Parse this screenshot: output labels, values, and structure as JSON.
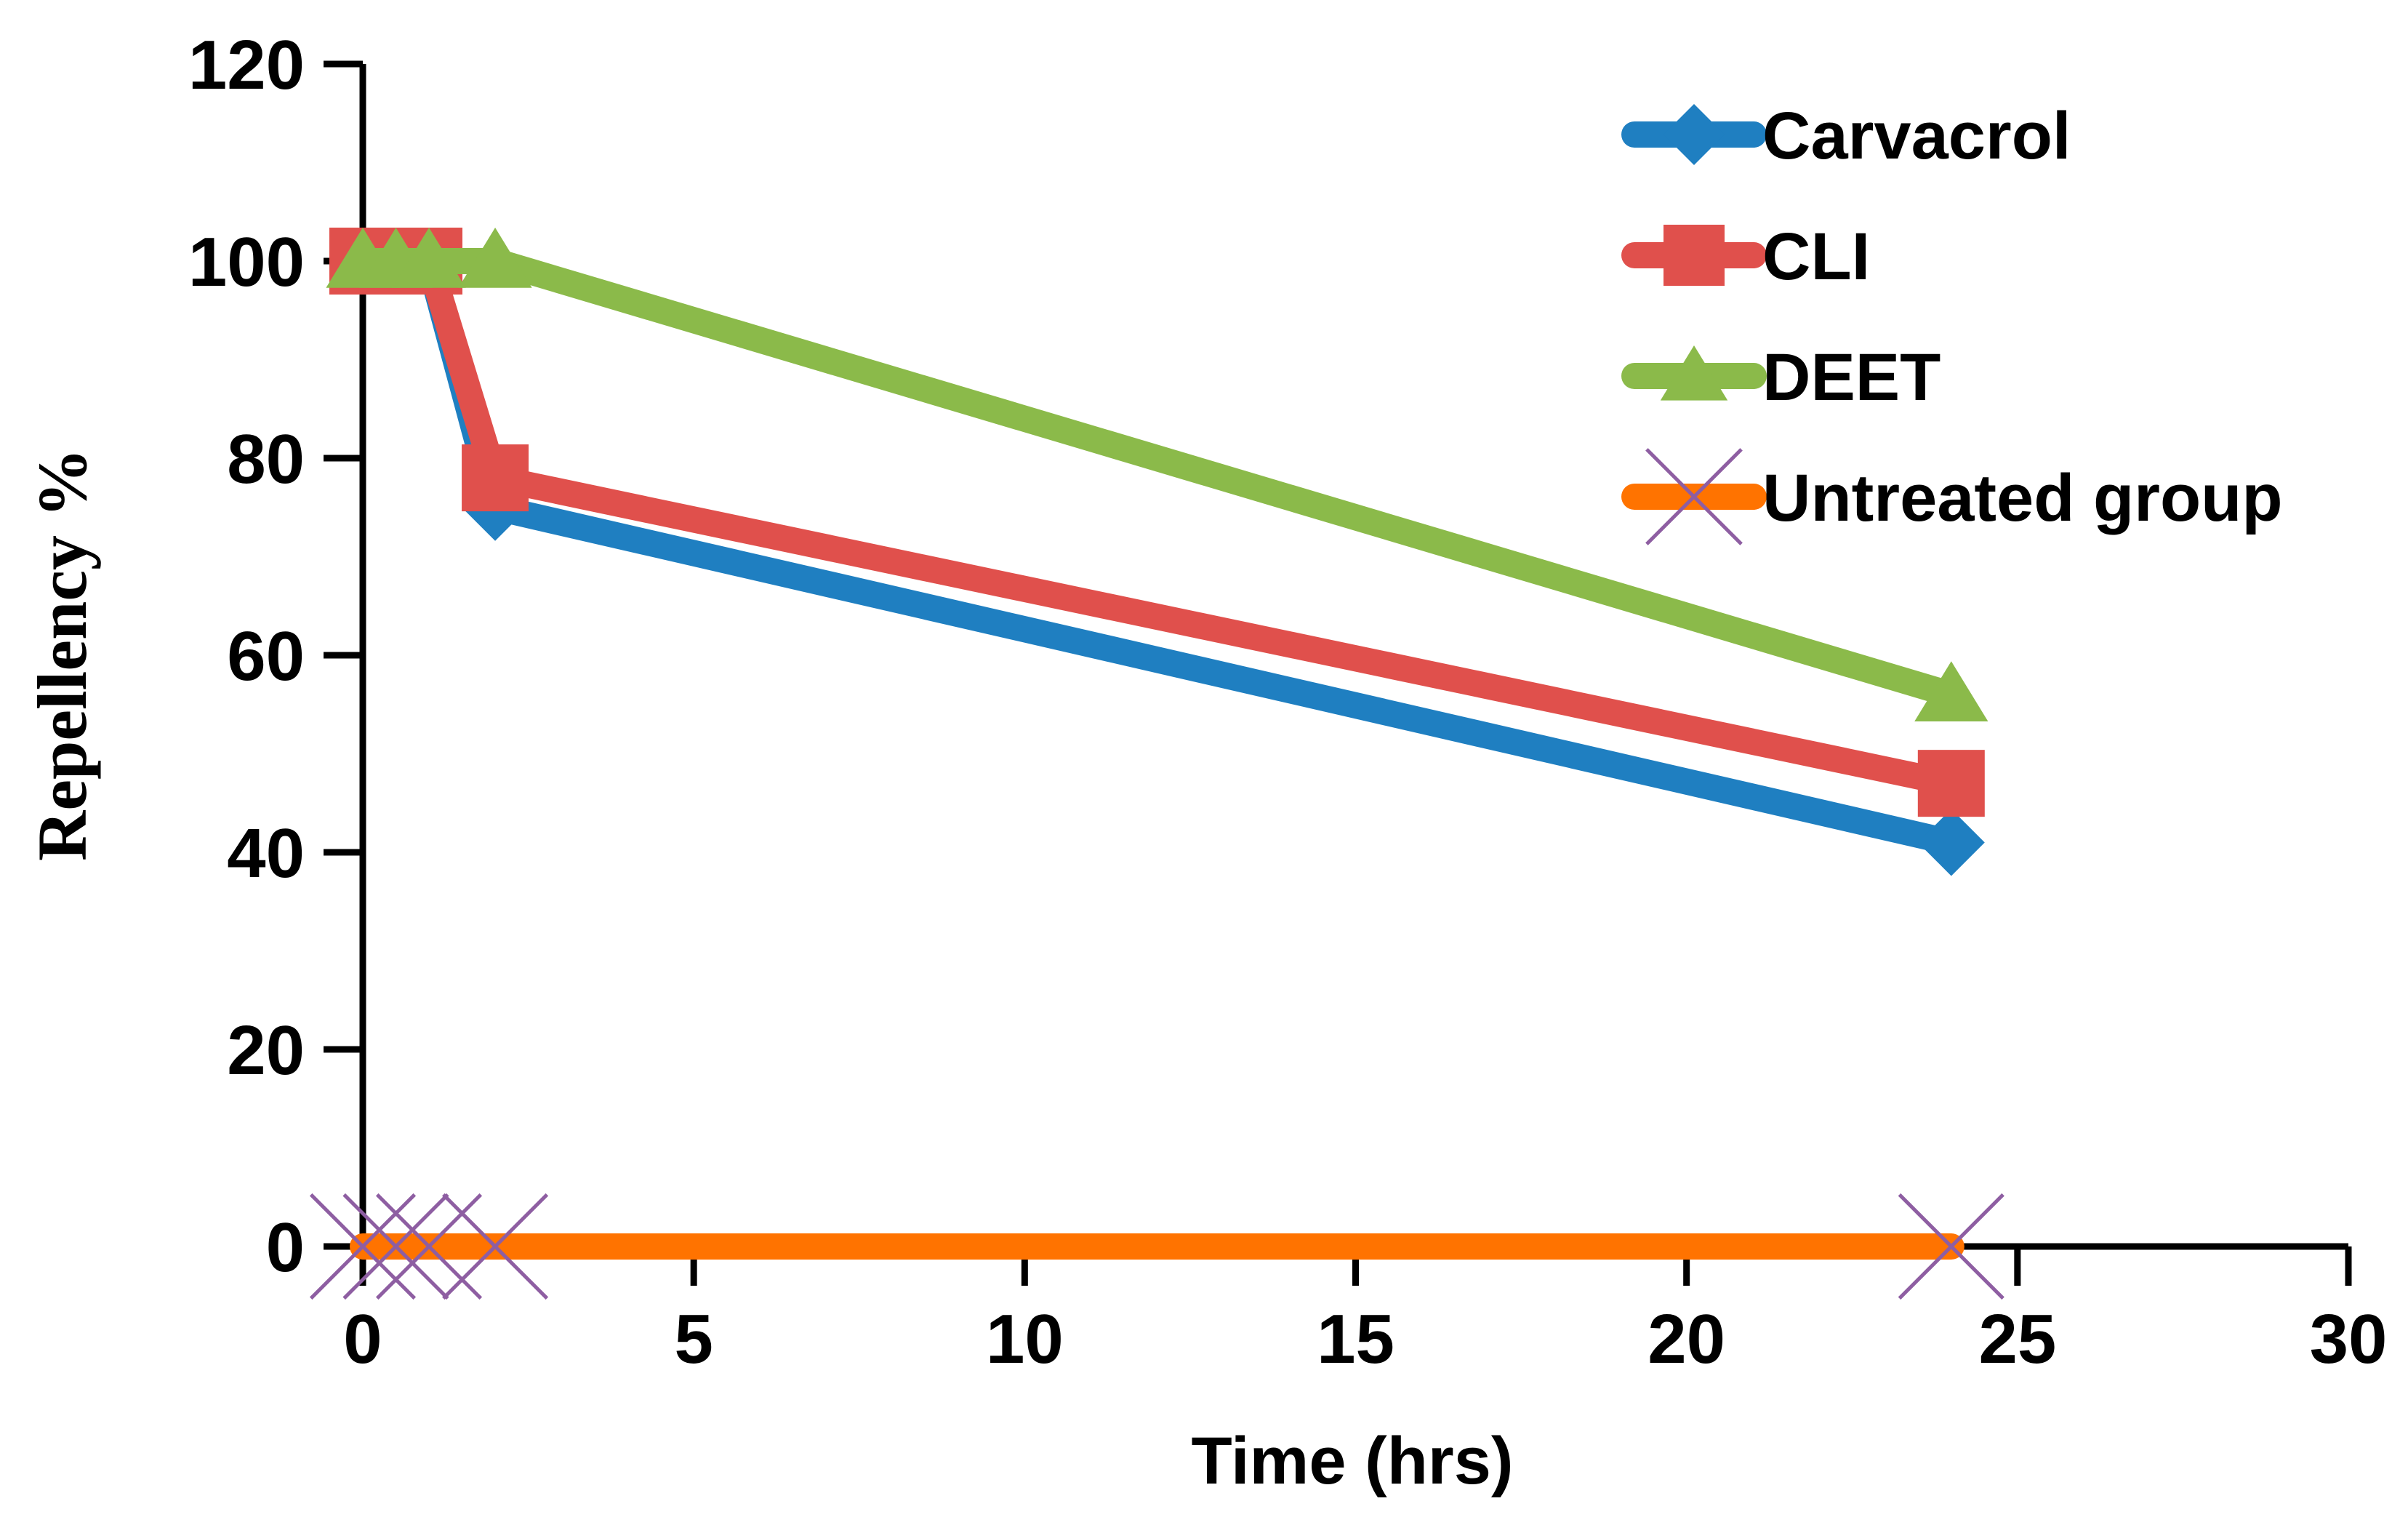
{
  "chart_data": {
    "type": "line",
    "title": "",
    "xlabel": "Time (hrs)",
    "ylabel": "Repellency %",
    "xlim": [
      0,
      30
    ],
    "ylim": [
      0,
      120
    ],
    "x_ticks": [
      0,
      5,
      10,
      15,
      20,
      25,
      30
    ],
    "y_ticks": [
      0,
      20,
      40,
      60,
      80,
      100,
      120
    ],
    "grid": false,
    "legend_position": "top-right",
    "series": [
      {
        "name": "Carvacrol",
        "color": "#1f7fc1",
        "marker": "diamond",
        "x": [
          0,
          0.5,
          1,
          2,
          24
        ],
        "y": [
          100,
          100,
          100,
          75,
          41
        ]
      },
      {
        "name": "CLI",
        "color": "#e0504c",
        "marker": "square",
        "x": [
          0,
          0.5,
          1,
          2,
          24
        ],
        "y": [
          100,
          100,
          100,
          78,
          47
        ]
      },
      {
        "name": "DEET",
        "color": "#8bba4a",
        "marker": "triangle",
        "x": [
          0,
          0.5,
          1,
          2,
          24
        ],
        "y": [
          100,
          100,
          100,
          100,
          56
        ]
      },
      {
        "name": "Untreated group",
        "color": "#ff7300",
        "marker": "x",
        "marker_color": "#8e5ea2",
        "x": [
          0,
          0.5,
          1,
          2,
          24
        ],
        "y": [
          0,
          0,
          0,
          0,
          0
        ]
      }
    ]
  }
}
